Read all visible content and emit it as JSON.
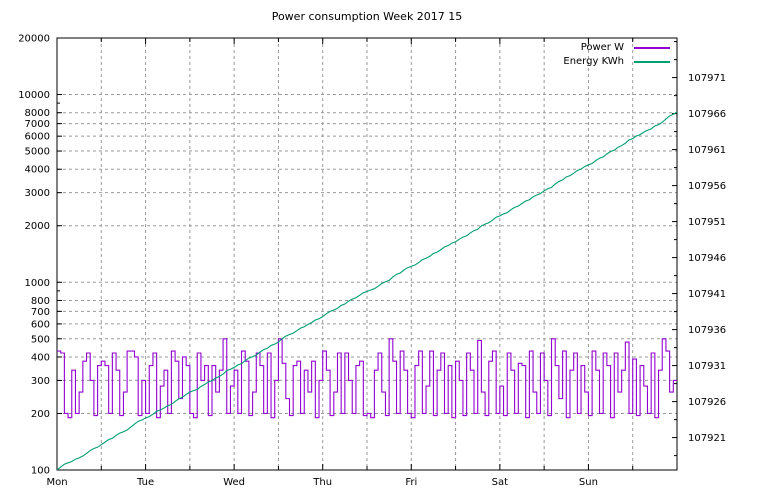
{
  "title": "Power consumption Week 2017 15",
  "legend": [
    {
      "label": "Power W",
      "color": "#9400d3"
    },
    {
      "label": "Energy KWh",
      "color": "#009e73"
    }
  ],
  "chart_data": {
    "type": "line",
    "title": "Power consumption Week 2017 15",
    "background": "#ffffff",
    "border_color": "#000000",
    "grid": {
      "color": "#9a9a9a",
      "dash": "3,3",
      "on": true
    },
    "x_axis": {
      "labels": [
        "Mon",
        "Tue",
        "Wed",
        "Thu",
        "Fri",
        "Sat",
        "Sun"
      ],
      "days": 7,
      "ticks_per_day": 2
    },
    "left_axis": {
      "scale": "log",
      "min": 100,
      "max": 20000,
      "ticks": [
        100,
        200,
        300,
        400,
        500,
        600,
        700,
        800,
        1000,
        2000,
        3000,
        4000,
        5000,
        6000,
        7000,
        8000,
        10000,
        20000
      ],
      "minor_ticks": [
        900,
        9000
      ],
      "label_for": "Power W"
    },
    "right_axis": {
      "scale": "linear",
      "min": 107916.5,
      "max": 107976.5,
      "ticks": [
        107921,
        107926,
        107931,
        107936,
        107941,
        107946,
        107951,
        107956,
        107961,
        107966,
        107971
      ],
      "minor_step": 2.5,
      "label_for": "Energy KWh"
    },
    "series": [
      {
        "name": "Power W",
        "axis": "left",
        "color": "#9400d3",
        "style": "steps",
        "unit": "W",
        "interval_hours": 1,
        "values": [
          430,
          420,
          200,
          190,
          340,
          200,
          260,
          380,
          420,
          300,
          195,
          360,
          380,
          360,
          200,
          420,
          340,
          195,
          260,
          430,
          430,
          400,
          195,
          300,
          200,
          360,
          420,
          190,
          280,
          340,
          200,
          430,
          380,
          240,
          400,
          360,
          200,
          190,
          420,
          300,
          360,
          195,
          360,
          260,
          340,
          500,
          200,
          280,
          340,
          200,
          430,
          380,
          195,
          260,
          420,
          360,
          200,
          420,
          190,
          300,
          500,
          370,
          240,
          195,
          360,
          380,
          200,
          340,
          260,
          380,
          190,
          300,
          430,
          340,
          195,
          260,
          420,
          200,
          420,
          300,
          200,
          360,
          380,
          195,
          200,
          190,
          340,
          420,
          260,
          195,
          500,
          380,
          200,
          430,
          340,
          200,
          190,
          360,
          430,
          200,
          280,
          430,
          195,
          340,
          420,
          200,
          360,
          190,
          380,
          300,
          195,
          420,
          340,
          200,
          490,
          260,
          195,
          380,
          430,
          200,
          280,
          195,
          420,
          340,
          200,
          370,
          360,
          190,
          430,
          260,
          200,
          420,
          300,
          195,
          500,
          360,
          240,
          430,
          190,
          340,
          420,
          200,
          360,
          260,
          195,
          430,
          340,
          200,
          420,
          360,
          190,
          420,
          260,
          340,
          480,
          200,
          390,
          195,
          360,
          280,
          200,
          420,
          190,
          340,
          500,
          430,
          260,
          300
        ]
      },
      {
        "name": "Energy KWh",
        "axis": "right",
        "color": "#009e73",
        "style": "cumulative-line",
        "unit": "KWh",
        "start": 107916.5,
        "end": 107966.2,
        "source": "cumulative sum of Power W series scaled between start and end"
      }
    ]
  }
}
